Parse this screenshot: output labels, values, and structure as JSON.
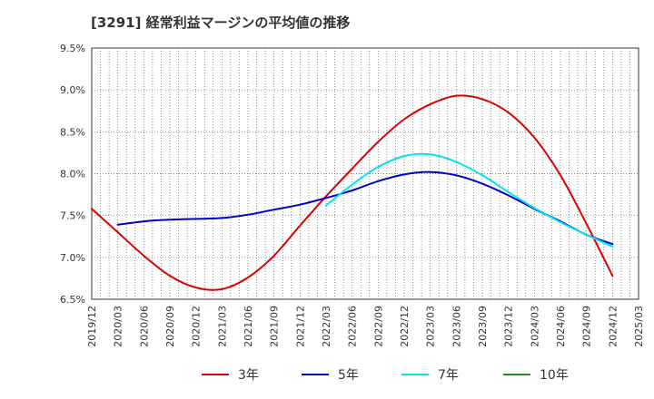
{
  "chart_data": {
    "type": "line",
    "title": "[3291]  経常利益マージンの平均値の推移",
    "x_ticks": [
      "2019/12",
      "2020/03",
      "2020/06",
      "2020/09",
      "2020/12",
      "2021/03",
      "2021/06",
      "2021/09",
      "2021/12",
      "2022/03",
      "2022/06",
      "2022/09",
      "2022/12",
      "2023/03",
      "2023/06",
      "2023/09",
      "2023/12",
      "2024/03",
      "2024/06",
      "2024/09",
      "2024/12",
      "2025/03"
    ],
    "y_ticks": [
      "9.5%",
      "9.0%",
      "8.5%",
      "8.0%",
      "7.5%",
      "7.0%",
      "6.5%"
    ],
    "ylim": [
      6.5,
      9.5
    ],
    "grid": true,
    "legend_position": "bottom",
    "series": [
      {
        "name": "3年",
        "color": "#dd0000",
        "x": [
          "2019/12",
          "2020/03",
          "2020/06",
          "2020/09",
          "2020/12",
          "2021/03",
          "2021/06",
          "2021/09",
          "2021/12",
          "2022/03",
          "2022/06",
          "2022/09",
          "2022/12",
          "2023/03",
          "2023/06",
          "2023/09",
          "2023/12",
          "2024/03",
          "2024/06",
          "2024/09",
          "2024/12"
        ],
        "values": [
          7.58,
          7.3,
          7.02,
          6.78,
          6.64,
          6.62,
          6.76,
          7.02,
          7.38,
          7.73,
          8.06,
          8.38,
          8.65,
          8.83,
          8.93,
          8.89,
          8.73,
          8.43,
          7.98,
          7.4,
          6.78
        ]
      },
      {
        "name": "5年",
        "color": "#0000cc",
        "x": [
          "2020/03",
          "2020/06",
          "2020/09",
          "2020/12",
          "2021/03",
          "2021/06",
          "2021/09",
          "2021/12",
          "2022/03",
          "2022/06",
          "2022/09",
          "2022/12",
          "2023/03",
          "2023/06",
          "2023/09",
          "2023/12",
          "2024/03",
          "2024/06",
          "2024/09",
          "2024/12"
        ],
        "values": [
          7.39,
          7.43,
          7.45,
          7.46,
          7.47,
          7.51,
          7.57,
          7.63,
          7.71,
          7.8,
          7.91,
          7.99,
          8.02,
          7.98,
          7.88,
          7.74,
          7.58,
          7.43,
          7.27,
          7.16
        ]
      },
      {
        "name": "7年",
        "color": "#00e5ee",
        "x": [
          "2022/03",
          "2022/06",
          "2022/09",
          "2022/12",
          "2023/03",
          "2023/06",
          "2023/09",
          "2023/12",
          "2024/03",
          "2024/06",
          "2024/09",
          "2024/12"
        ],
        "values": [
          7.62,
          7.87,
          8.08,
          8.21,
          8.23,
          8.14,
          7.98,
          7.78,
          7.59,
          7.42,
          7.27,
          7.13
        ]
      },
      {
        "name": "10年",
        "color": "#228b22",
        "x": [],
        "values": []
      }
    ]
  }
}
